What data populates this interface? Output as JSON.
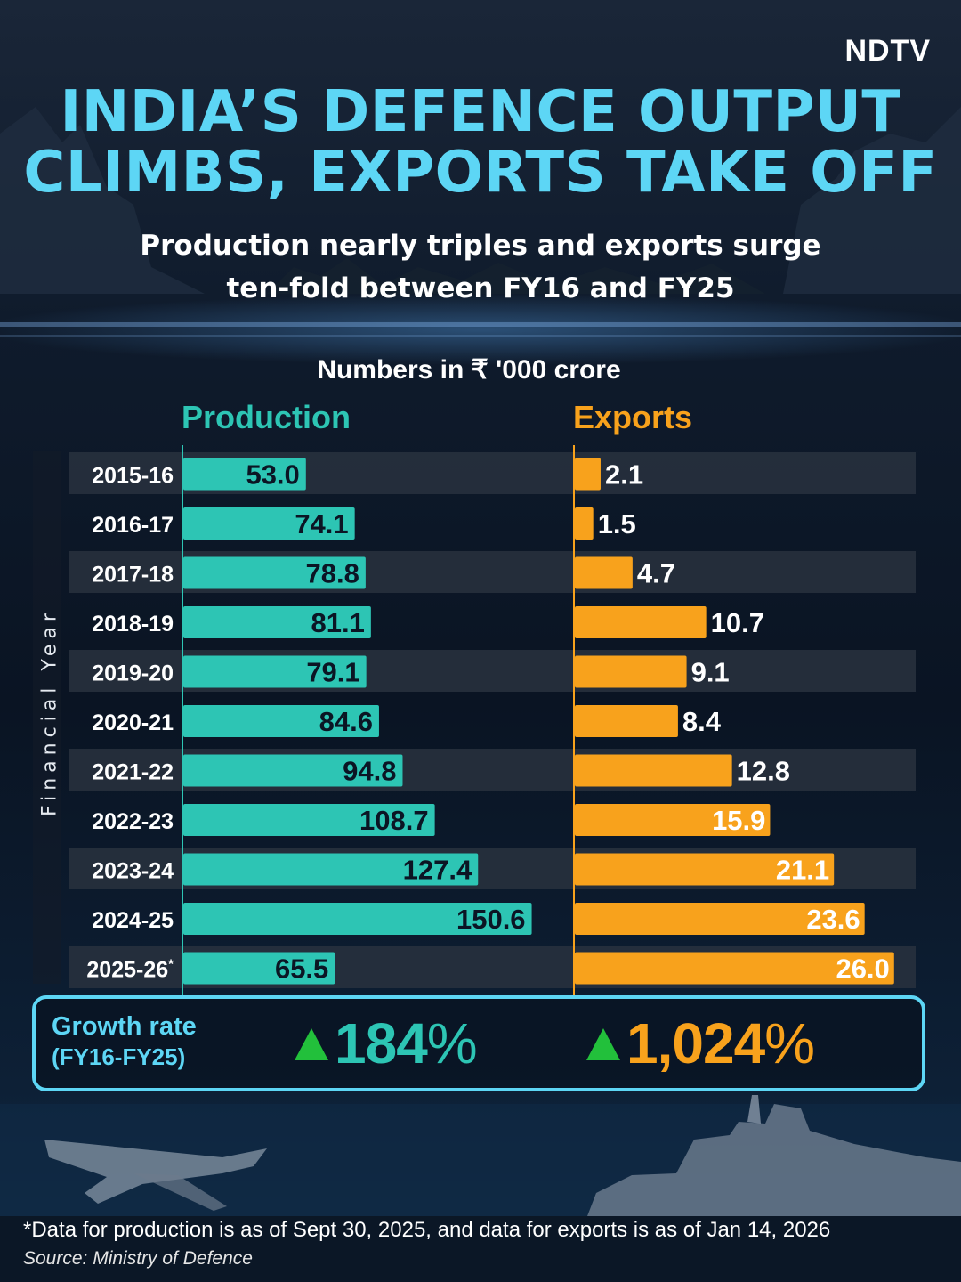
{
  "brand": {
    "logo_text": "NDTV"
  },
  "header": {
    "title_line1": "INDIA’S DEFENCE OUTPUT",
    "title_line2": "CLIMBS, EXPORTS TAKE OFF",
    "subtitle_line1": "Production nearly triples and exports surge",
    "subtitle_line2": "ten-fold between FY16 and FY25"
  },
  "colors": {
    "production": "#2dc5b4",
    "exports": "#f8a21c",
    "accent": "#5dd6f5",
    "growth_arrow": "#22c03b"
  },
  "chart_data": {
    "type": "bar",
    "orientation": "horizontal",
    "units_label": "Numbers in ₹ '000 crore",
    "ylabel": "Financial Year",
    "categories": [
      "2015-16",
      "2016-17",
      "2017-18",
      "2018-19",
      "2019-20",
      "2020-21",
      "2021-22",
      "2022-23",
      "2023-24",
      "2024-25",
      "2025-26*"
    ],
    "series": [
      {
        "name": "Production",
        "values": [
          53.0,
          74.1,
          78.8,
          81.1,
          79.1,
          84.6,
          94.8,
          108.7,
          127.4,
          150.6,
          65.5
        ]
      },
      {
        "name": "Exports",
        "values": [
          2.1,
          1.5,
          4.7,
          10.7,
          9.1,
          8.4,
          12.8,
          15.9,
          21.1,
          23.6,
          26.0
        ]
      }
    ],
    "value_labels": {
      "Production": [
        "53.0",
        "74.1",
        "78.8",
        "81.1",
        "79.1",
        "84.6",
        "94.8",
        "108.7",
        "127.4",
        "150.6",
        "65.5"
      ],
      "Exports": [
        "2.1",
        "1.5",
        "4.7",
        "10.7",
        "9.1",
        "8.4",
        "12.8",
        "15.9",
        "21.1",
        "23.6",
        "26.0"
      ]
    },
    "xlim": {
      "Production": [
        26.0,
        150.6
      ],
      "Exports": [
        0,
        26.0
      ]
    }
  },
  "growth": {
    "label": "Growth rate",
    "period": "(FY16-FY25)",
    "production_value": "184",
    "exports_value": "1,024",
    "percent_sign": "%"
  },
  "footer": {
    "note": "*Data for production is as of Sept 30, 2025, and data for exports is as of Jan 14, 2026",
    "source": "Source: Ministry of Defence"
  }
}
